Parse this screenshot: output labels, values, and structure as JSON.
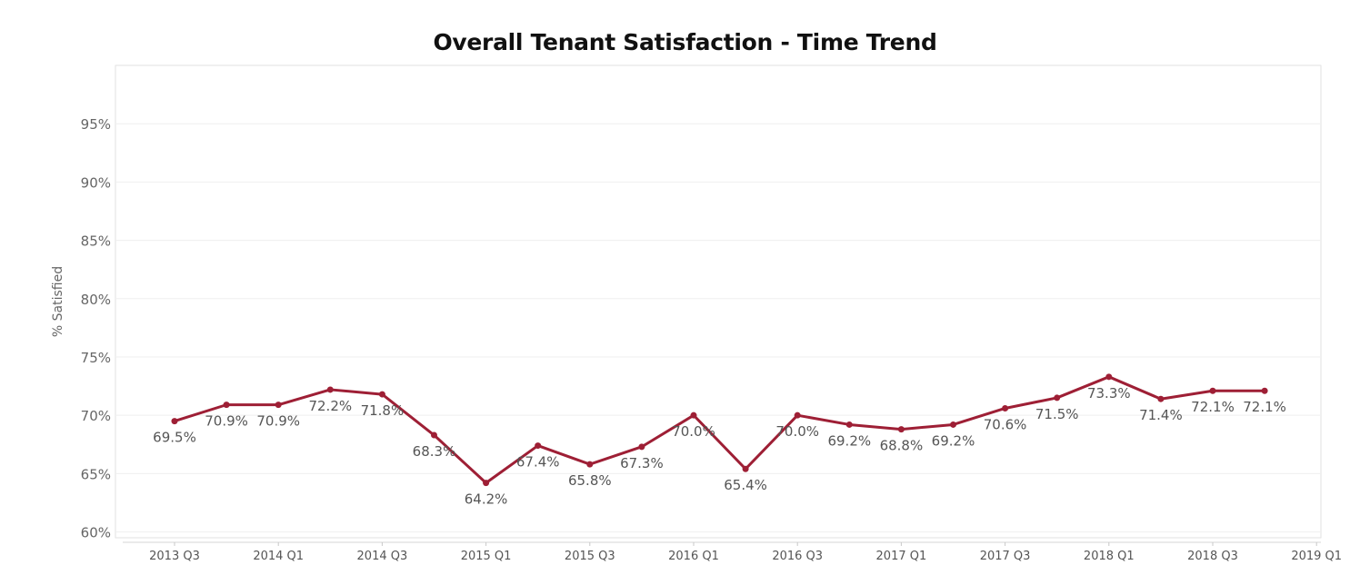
{
  "chart_data": {
    "type": "line",
    "title": "Overall Tenant Satisfaction - Time Trend",
    "xlabel": "",
    "ylabel": "% Satisfied",
    "ylim": [
      59.5,
      100
    ],
    "yticks": [
      60,
      65,
      70,
      75,
      80,
      85,
      90,
      95
    ],
    "ytick_labels": [
      "60%",
      "65%",
      "70%",
      "75%",
      "80%",
      "85%",
      "90%",
      "95%"
    ],
    "xtick_labels": [
      "2013 Q3",
      "2014 Q1",
      "2014 Q3",
      "2015 Q1",
      "2015 Q3",
      "2016 Q1",
      "2016 Q3",
      "2017 Q1",
      "2017 Q3",
      "2018 Q1",
      "2018 Q3",
      "2019 Q1"
    ],
    "grid": true,
    "color": "#9e1f35",
    "series": [
      {
        "x": [
          "2013 Q3",
          "2013 Q4",
          "2014 Q1",
          "2014 Q2",
          "2014 Q3",
          "2014 Q4",
          "2015 Q1",
          "2015 Q2",
          "2015 Q3",
          "2015 Q4",
          "2016 Q1",
          "2016 Q2",
          "2016 Q3",
          "2016 Q4",
          "2017 Q1",
          "2017 Q2",
          "2017 Q3",
          "2017 Q4",
          "2018 Q1",
          "2018 Q2",
          "2018 Q3",
          "2018 Q4"
        ],
        "values": [
          69.5,
          70.9,
          70.9,
          72.2,
          71.8,
          68.3,
          64.2,
          67.4,
          65.8,
          67.3,
          70.0,
          65.4,
          70.0,
          69.2,
          68.8,
          69.2,
          70.6,
          71.5,
          73.3,
          71.4,
          72.1,
          72.1
        ],
        "labels": [
          "69.5%",
          "70.9%",
          "70.9%",
          "72.2%",
          "71.8%",
          "68.3%",
          "64.2%",
          "67.4%",
          "65.8%",
          "67.3%",
          "70.0%",
          "65.4%",
          "70.0%",
          "69.2%",
          "68.8%",
          "69.2%",
          "70.6%",
          "71.5%",
          "73.3%",
          "71.4%",
          "72.1%",
          "72.1%"
        ]
      }
    ]
  }
}
